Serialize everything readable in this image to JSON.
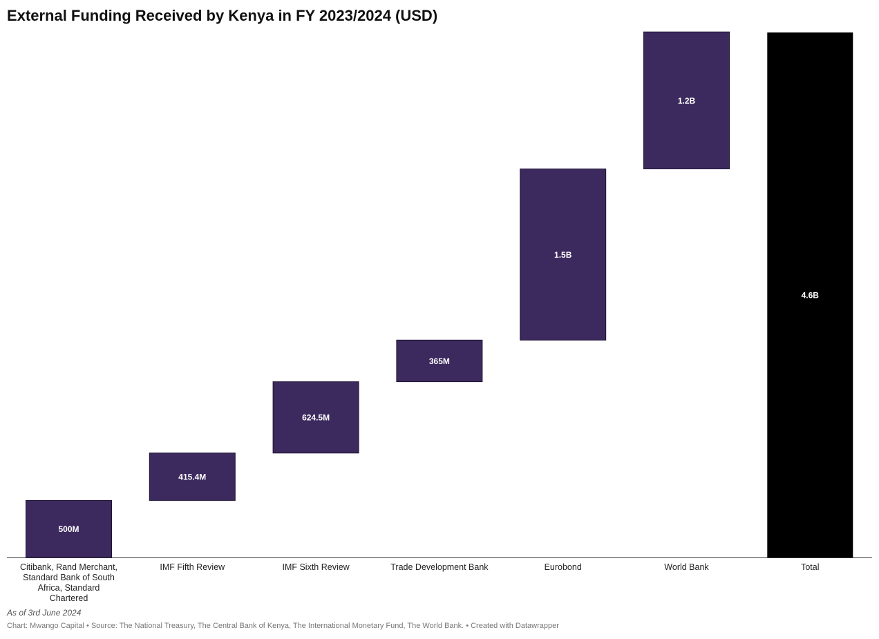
{
  "chart_data": {
    "type": "waterfall",
    "title": "External Funding Received by Kenya in FY 2023/2024 (USD)",
    "categories": [
      "Citibank, Rand Merchant, Standard Bank of South Africa, Standard Chartered",
      "IMF Fifth Review",
      "IMF Sixth Review",
      "Trade Development Bank",
      "Eurobond",
      "World Bank",
      "Total"
    ],
    "values": [
      500,
      415.4,
      624.5,
      365,
      1500,
      1200,
      4600
    ],
    "value_unit": "million USD",
    "data_labels": [
      "500M",
      "415.4M",
      "624.5M",
      "365M",
      "1.5B",
      "1.2B",
      "4.6B"
    ],
    "total_index": 6,
    "ylim": [
      0,
      4600
    ],
    "colors": {
      "increase": "#3c2a5e",
      "total": "#000000",
      "label": "#ffffff"
    },
    "grid": false,
    "legend": "none"
  },
  "footer": {
    "note": "As of 3rd June 2024",
    "source": "Chart: Mwango Capital • Source: The National Treasury, The Central Bank of Kenya, The International Monetary Fund, The World Bank. • Created with Datawrapper"
  }
}
